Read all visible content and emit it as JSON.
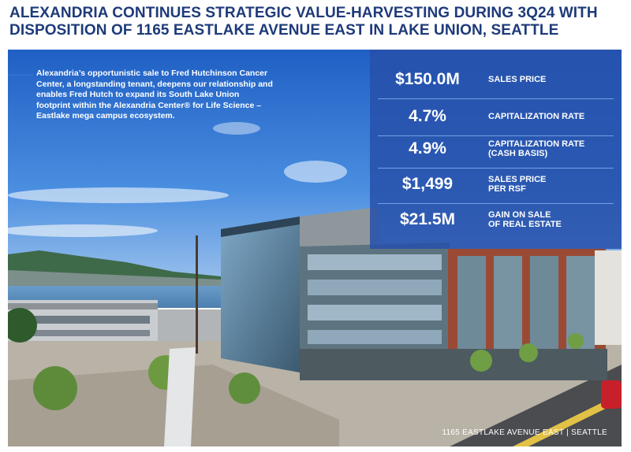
{
  "title": {
    "line1": "ALEXANDRIA CONTINUES STRATEGIC VALUE-HARVESTING DURING 3Q24 WITH",
    "line2": "DISPOSITION OF 1165 EASTLAKE AVENUE EAST IN LAKE UNION, SEATTLE"
  },
  "intro": "Alexandria’s opportunistic sale to Fred Hutchinson Cancer Center, a longstanding tenant, deepens our relationship and enables Fred Hutch to expand its South Lake Union footprint within the Alexandria Center® for Life Science – Eastlake mega campus ecosystem.",
  "stats": [
    {
      "value": "$150.0M",
      "label_line1": "SALES PRICE",
      "label_line2": ""
    },
    {
      "value": "4.7%",
      "label_line1": "CAPITALIZATION RATE",
      "label_line2": ""
    },
    {
      "value": "4.9%",
      "label_line1": "CAPITALIZATION RATE",
      "label_line2": "(CASH BASIS)"
    },
    {
      "value": "$1,499",
      "label_line1": "SALES PRICE",
      "label_line2": "PER RSF"
    },
    {
      "value": "$21.5M",
      "label_line1": "GAIN ON SALE",
      "label_line2": "OF REAL ESTATE"
    }
  ],
  "caption": "1165 EASTLAKE AVENUE EAST | SEATTLE",
  "colors": {
    "title": "#1d3a7a",
    "panel": "#2650aa",
    "sky": "#2a6fd0",
    "accent_rule": "#2f6fd0"
  }
}
